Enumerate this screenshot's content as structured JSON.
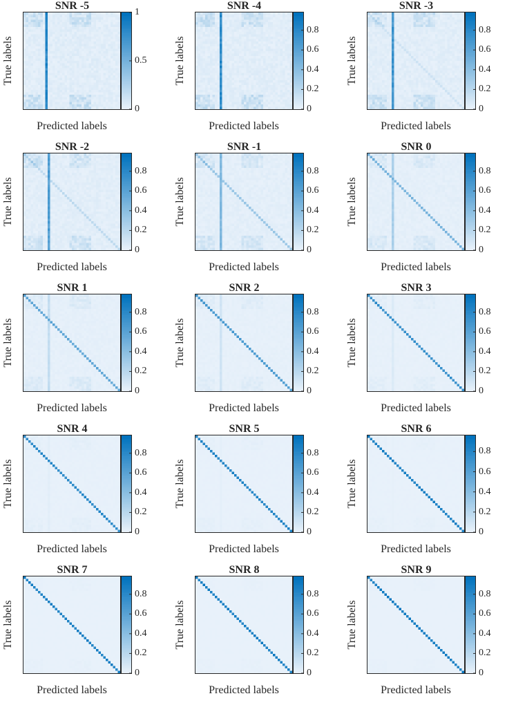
{
  "figure": {
    "type": "confusion-matrix-grid",
    "rows": 5,
    "cols": 3,
    "colors": {
      "low": "#e8f1fa",
      "high": "#0072bd",
      "axis": "#262626",
      "text": "#262626"
    }
  },
  "chart_data": [
    {
      "type": "heatmap",
      "title": "SNR -5",
      "xlabel": "Predicted labels",
      "ylabel": "True labels",
      "snr": -5,
      "n_classes": 40,
      "colorbar": {
        "min": 0,
        "max": 1,
        "ticks": [
          0,
          0.5,
          1
        ],
        "tick_labels": [
          "0",
          "0.5",
          "1"
        ]
      },
      "pattern": {
        "collapse_column": 9,
        "collapse_value": 0.95,
        "diagonal_value": 0.0
      }
    },
    {
      "type": "heatmap",
      "title": "SNR -4",
      "xlabel": "Predicted labels",
      "ylabel": "True labels",
      "snr": -4,
      "n_classes": 40,
      "colorbar": {
        "min": 0,
        "max": 0.98,
        "ticks": [
          0,
          0.2,
          0.4,
          0.6,
          0.8
        ],
        "tick_labels": [
          "0",
          "0.2",
          "0.4",
          "0.6",
          "0.8"
        ]
      },
      "pattern": {
        "collapse_column": 10,
        "collapse_value": 0.9,
        "diagonal_value": 0.05
      }
    },
    {
      "type": "heatmap",
      "title": "SNR -3",
      "xlabel": "Predicted labels",
      "ylabel": "True labels",
      "snr": -3,
      "n_classes": 40,
      "colorbar": {
        "min": 0,
        "max": 0.98,
        "ticks": [
          0,
          0.2,
          0.4,
          0.6,
          0.8
        ],
        "tick_labels": [
          "0",
          "0.2",
          "0.4",
          "0.6",
          "0.8"
        ]
      },
      "pattern": {
        "collapse_column": 10,
        "collapse_value": 0.8,
        "diagonal_value": 0.12
      }
    },
    {
      "type": "heatmap",
      "title": "SNR -2",
      "xlabel": "Predicted labels",
      "ylabel": "True labels",
      "snr": -2,
      "n_classes": 40,
      "colorbar": {
        "min": 0,
        "max": 0.98,
        "ticks": [
          0,
          0.2,
          0.4,
          0.6,
          0.8
        ],
        "tick_labels": [
          "0",
          "0.2",
          "0.4",
          "0.6",
          "0.8"
        ]
      },
      "pattern": {
        "collapse_column": 10,
        "collapse_value": 0.72,
        "diagonal_value": 0.2
      }
    },
    {
      "type": "heatmap",
      "title": "SNR -1",
      "xlabel": "Predicted labels",
      "ylabel": "True labels",
      "snr": -1,
      "n_classes": 40,
      "colorbar": {
        "min": 0,
        "max": 0.98,
        "ticks": [
          0,
          0.2,
          0.4,
          0.6,
          0.8
        ],
        "tick_labels": [
          "0",
          "0.2",
          "0.4",
          "0.6",
          "0.8"
        ]
      },
      "pattern": {
        "collapse_column": 10,
        "collapse_value": 0.5,
        "diagonal_value": 0.35
      }
    },
    {
      "type": "heatmap",
      "title": "SNR 0",
      "xlabel": "Predicted labels",
      "ylabel": "True labels",
      "snr": 0,
      "n_classes": 40,
      "colorbar": {
        "min": 0,
        "max": 0.98,
        "ticks": [
          0,
          0.2,
          0.4,
          0.6,
          0.8
        ],
        "tick_labels": [
          "0",
          "0.2",
          "0.4",
          "0.6",
          "0.8"
        ]
      },
      "pattern": {
        "collapse_column": 10,
        "collapse_value": 0.3,
        "diagonal_value": 0.5
      }
    },
    {
      "type": "heatmap",
      "title": "SNR 1",
      "xlabel": "Predicted labels",
      "ylabel": "True labels",
      "snr": 1,
      "n_classes": 40,
      "colorbar": {
        "min": 0,
        "max": 0.98,
        "ticks": [
          0,
          0.2,
          0.4,
          0.6,
          0.8
        ],
        "tick_labels": [
          "0",
          "0.2",
          "0.4",
          "0.6",
          "0.8"
        ]
      },
      "pattern": {
        "collapse_column": 10,
        "collapse_value": 0.18,
        "diagonal_value": 0.62
      }
    },
    {
      "type": "heatmap",
      "title": "SNR 2",
      "xlabel": "Predicted labels",
      "ylabel": "True labels",
      "snr": 2,
      "n_classes": 40,
      "colorbar": {
        "min": 0,
        "max": 0.98,
        "ticks": [
          0,
          0.2,
          0.4,
          0.6,
          0.8
        ],
        "tick_labels": [
          "0",
          "0.2",
          "0.4",
          "0.6",
          "0.8"
        ]
      },
      "pattern": {
        "collapse_column": 10,
        "collapse_value": 0.12,
        "diagonal_value": 0.72
      }
    },
    {
      "type": "heatmap",
      "title": "SNR 3",
      "xlabel": "Predicted labels",
      "ylabel": "True labels",
      "snr": 3,
      "n_classes": 40,
      "colorbar": {
        "min": 0,
        "max": 0.98,
        "ticks": [
          0,
          0.2,
          0.4,
          0.6,
          0.8
        ],
        "tick_labels": [
          "0",
          "0.2",
          "0.4",
          "0.6",
          "0.8"
        ]
      },
      "pattern": {
        "collapse_column": 10,
        "collapse_value": 0.06,
        "diagonal_value": 0.8
      }
    },
    {
      "type": "heatmap",
      "title": "SNR 4",
      "xlabel": "Predicted labels",
      "ylabel": "True labels",
      "snr": 4,
      "n_classes": 40,
      "colorbar": {
        "min": 0,
        "max": 0.98,
        "ticks": [
          0,
          0.2,
          0.4,
          0.6,
          0.8
        ],
        "tick_labels": [
          "0",
          "0.2",
          "0.4",
          "0.6",
          "0.8"
        ]
      },
      "pattern": {
        "collapse_column": 10,
        "collapse_value": 0.03,
        "diagonal_value": 0.86
      }
    },
    {
      "type": "heatmap",
      "title": "SNR 5",
      "xlabel": "Predicted labels",
      "ylabel": "True labels",
      "snr": 5,
      "n_classes": 40,
      "colorbar": {
        "min": 0,
        "max": 0.98,
        "ticks": [
          0,
          0.2,
          0.4,
          0.6,
          0.8
        ],
        "tick_labels": [
          "0",
          "0.2",
          "0.4",
          "0.6",
          "0.8"
        ]
      },
      "pattern": {
        "collapse_column": 10,
        "collapse_value": 0.02,
        "diagonal_value": 0.9
      }
    },
    {
      "type": "heatmap",
      "title": "SNR 6",
      "xlabel": "Predicted labels",
      "ylabel": "True labels",
      "snr": 6,
      "n_classes": 40,
      "colorbar": {
        "min": 0,
        "max": 0.96,
        "ticks": [
          0,
          0.2,
          0.4,
          0.6,
          0.8
        ],
        "tick_labels": [
          "0",
          "0.2",
          "0.4",
          "0.6",
          "0.8"
        ]
      },
      "pattern": {
        "collapse_column": 10,
        "collapse_value": 0.01,
        "diagonal_value": 0.92
      }
    },
    {
      "type": "heatmap",
      "title": "SNR 7",
      "xlabel": "Predicted labels",
      "ylabel": "True labels",
      "snr": 7,
      "n_classes": 40,
      "colorbar": {
        "min": 0,
        "max": 0.98,
        "ticks": [
          0,
          0.2,
          0.4,
          0.6,
          0.8
        ],
        "tick_labels": [
          "0",
          "0.2",
          "0.4",
          "0.6",
          "0.8"
        ]
      },
      "pattern": {
        "collapse_column": 10,
        "collapse_value": 0.0,
        "diagonal_value": 0.94
      }
    },
    {
      "type": "heatmap",
      "title": "SNR 8",
      "xlabel": "Predicted labels",
      "ylabel": "True labels",
      "snr": 8,
      "n_classes": 40,
      "colorbar": {
        "min": 0,
        "max": 0.98,
        "ticks": [
          0,
          0.2,
          0.4,
          0.6,
          0.8
        ],
        "tick_labels": [
          "0",
          "0.2",
          "0.4",
          "0.6",
          "0.8"
        ]
      },
      "pattern": {
        "collapse_column": 10,
        "collapse_value": 0.0,
        "diagonal_value": 0.95
      }
    },
    {
      "type": "heatmap",
      "title": "SNR 9",
      "xlabel": "Predicted labels",
      "ylabel": "True labels",
      "snr": 9,
      "n_classes": 40,
      "colorbar": {
        "min": 0,
        "max": 0.98,
        "ticks": [
          0,
          0.2,
          0.4,
          0.6,
          0.8
        ],
        "tick_labels": [
          "0",
          "0.2",
          "0.4",
          "0.6",
          "0.8"
        ]
      },
      "pattern": {
        "collapse_column": 10,
        "collapse_value": 0.0,
        "diagonal_value": 0.96
      }
    }
  ]
}
